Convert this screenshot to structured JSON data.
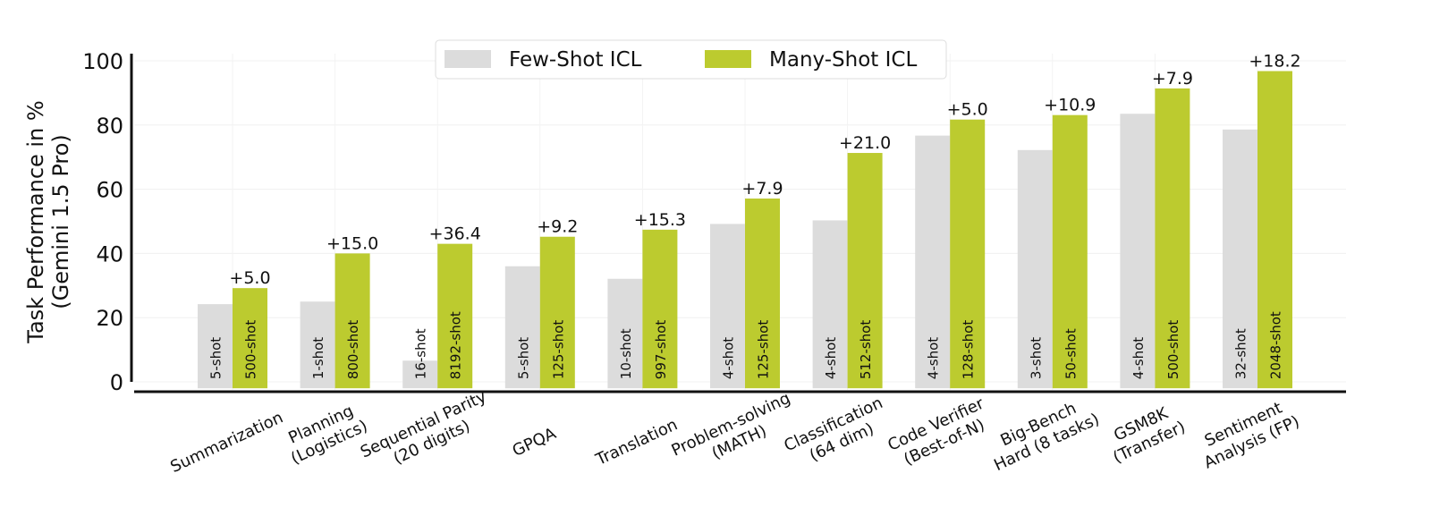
{
  "chart_data": {
    "type": "bar",
    "ylabel": "Task Performance in %\n(Gemini 1.5 Pro)",
    "ylim": [
      -2,
      100
    ],
    "yticks": [
      0,
      20,
      40,
      60,
      80,
      100
    ],
    "grid": true,
    "legend_position": "top-center",
    "categories": [
      "Summarization",
      "Planning\n(Logistics)",
      "Sequential Parity\n(20 digits)",
      "GPQA",
      "Translation",
      "Problem-solving\n(MATH)",
      "Classification\n(64 dim)",
      "Code Verifier\n(Best-of-N)",
      "Big-Bench\nHard (8 tasks)",
      "GSM8K\n(Transfer)",
      "Sentiment\nAnalysis (FP)"
    ],
    "series": [
      {
        "name": "Few-Shot ICL",
        "color": "#dcdcdc",
        "values": [
          24.2,
          25.0,
          6.6,
          36.0,
          32.1,
          49.2,
          50.3,
          76.7,
          72.2,
          83.5,
          78.6
        ],
        "bar_labels": [
          "5-shot",
          "1-shot",
          "16-shot",
          "5-shot",
          "10-shot",
          "4-shot",
          "4-shot",
          "4-shot",
          "3-shot",
          "4-shot",
          "32-shot"
        ]
      },
      {
        "name": "Many-Shot ICL",
        "color": "#bccb2f",
        "values": [
          29.2,
          40.0,
          43.0,
          45.2,
          47.4,
          57.1,
          71.3,
          81.7,
          83.1,
          91.4,
          96.8
        ],
        "bar_labels": [
          "500-shot",
          "800-shot",
          "8192-shot",
          "125-shot",
          "997-shot",
          "125-shot",
          "512-shot",
          "128-shot",
          "50-shot",
          "500-shot",
          "2048-shot"
        ]
      }
    ],
    "annotations": [
      "+5.0",
      "+15.0",
      "+36.4",
      "+9.2",
      "+15.3",
      "+7.9",
      "+21.0",
      "+5.0",
      "+10.9",
      "+7.9",
      "+18.2"
    ]
  }
}
